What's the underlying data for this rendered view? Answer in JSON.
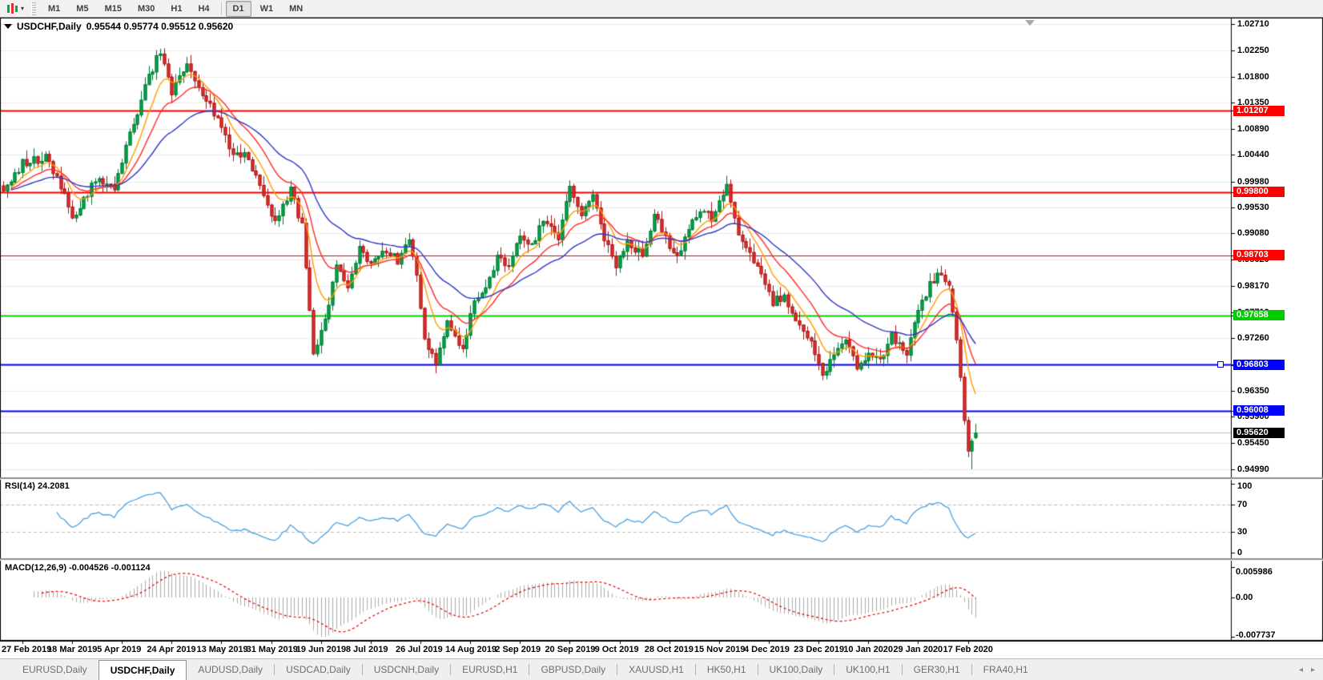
{
  "toolbar": {
    "timeframes": [
      "M1",
      "M5",
      "M15",
      "M30",
      "H1",
      "H4",
      "D1",
      "W1",
      "MN"
    ],
    "active_timeframe": "D1"
  },
  "icons": {
    "toolbar_chart_icon": "chart-periods",
    "toolbar_caret": "▾",
    "title_collapse": "▼",
    "scroll_marker": "▼",
    "tabs_left_arrow": "◂",
    "tabs_right_arrow": "▸"
  },
  "header": {
    "symbol": "USDCHF,Daily",
    "ohlc": "0.95544 0.95774 0.95512 0.95620"
  },
  "chart_data": {
    "type": "candlestick",
    "symbol": "USDCHF",
    "timeframe": "Daily",
    "title": "USDCHF,Daily",
    "ohlc_current": {
      "open": 0.95544,
      "high": 0.95774,
      "low": 0.95512,
      "close": 0.9562
    },
    "price_axis_ticks": [
      "1.02710",
      "1.02250",
      "1.01800",
      "1.01350",
      "1.00890",
      "1.00440",
      "0.99980",
      "0.99530",
      "0.99080",
      "0.98620",
      "0.98170",
      "0.97710",
      "0.97260",
      "0.96800",
      "0.96350",
      "0.95900",
      "0.95450",
      "0.94990"
    ],
    "price_axis_range": [
      0.9499,
      1.0271
    ],
    "x_axis_labels": [
      "27 Feb 2019",
      "18 Mar 2019",
      "5 Apr 2019",
      "24 Apr 2019",
      "13 May 2019",
      "31 May 2019",
      "19 Jun 2019",
      "8 Jul 2019",
      "26 Jul 2019",
      "14 Aug 2019",
      "2 Sep 2019",
      "20 Sep 2019",
      "9 Oct 2019",
      "28 Oct 2019",
      "15 Nov 2019",
      "4 Dec 2019",
      "23 Dec 2019",
      "10 Jan 2020",
      "29 Jan 2020",
      "17 Feb 2020"
    ],
    "levels": [
      {
        "price": 1.01207,
        "color": "#ff0000",
        "lw": 2,
        "badge": "1.01207",
        "badge_bg": "#ff0000"
      },
      {
        "price": 0.998,
        "color": "#ff0000",
        "lw": 2,
        "badge": "0.99800",
        "badge_bg": "#ff0000"
      },
      {
        "price": 0.98703,
        "color": "#e00000",
        "lw": 1,
        "badge": "0.98703",
        "badge_bg": "#ff0000"
      },
      {
        "price": 0.97658,
        "color": "#00d200",
        "lw": 2,
        "badge": "0.97658",
        "badge_bg": "#00cc00"
      },
      {
        "price": 0.96803,
        "color": "#0000ff",
        "lw": 2,
        "badge": "0.96803",
        "badge_bg": "#0000ff",
        "handle": true
      },
      {
        "price": 0.96008,
        "color": "#0000ff",
        "lw": 2,
        "badge": "0.96008",
        "badge_bg": "#0000ff"
      }
    ],
    "current_price": {
      "value": 0.9562,
      "badge": "0.95620",
      "line_color": "#bcbcbc",
      "badge_bg": "#000000"
    },
    "candles_count": 255,
    "price_path_anchors": [
      [
        0,
        0.9985
      ],
      [
        5,
        1.003
      ],
      [
        11,
        1.004
      ],
      [
        15,
        0.999
      ],
      [
        18,
        0.9935
      ],
      [
        24,
        1.0
      ],
      [
        29,
        0.9985
      ],
      [
        33,
        1.008
      ],
      [
        38,
        1.018
      ],
      [
        41,
        1.0226
      ],
      [
        44,
        1.015
      ],
      [
        48,
        1.0205
      ],
      [
        50,
        1.0175
      ],
      [
        54,
        1.013
      ],
      [
        60,
        1.0048
      ],
      [
        64,
        1.004
      ],
      [
        68,
        0.9975
      ],
      [
        71,
        0.993
      ],
      [
        75,
        0.9985
      ],
      [
        78,
        0.992
      ],
      [
        81,
        0.97
      ],
      [
        84,
        0.9755
      ],
      [
        87,
        0.985
      ],
      [
        90,
        0.981
      ],
      [
        93,
        0.988
      ],
      [
        96,
        0.9855
      ],
      [
        100,
        0.988
      ],
      [
        103,
        0.986
      ],
      [
        106,
        0.99
      ],
      [
        108,
        0.984
      ],
      [
        110,
        0.972
      ],
      [
        113,
        0.9685
      ],
      [
        116,
        0.975
      ],
      [
        120,
        0.971
      ],
      [
        123,
        0.979
      ],
      [
        126,
        0.981
      ],
      [
        129,
        0.987
      ],
      [
        132,
        0.985
      ],
      [
        135,
        0.9905
      ],
      [
        138,
        0.9885
      ],
      [
        141,
        0.9935
      ],
      [
        145,
        0.99
      ],
      [
        148,
        0.999
      ],
      [
        151,
        0.9945
      ],
      [
        154,
        0.997
      ],
      [
        157,
        0.99
      ],
      [
        160,
        0.9855
      ],
      [
        163,
        0.9895
      ],
      [
        167,
        0.987
      ],
      [
        170,
        0.994
      ],
      [
        173,
        0.99
      ],
      [
        176,
        0.9865
      ],
      [
        179,
        0.992
      ],
      [
        182,
        0.995
      ],
      [
        185,
        0.9935
      ],
      [
        189,
        0.999
      ],
      [
        192,
        0.99
      ],
      [
        195,
        0.987
      ],
      [
        198,
        0.984
      ],
      [
        201,
        0.979
      ],
      [
        204,
        0.98
      ],
      [
        207,
        0.976
      ],
      [
        211,
        0.972
      ],
      [
        214,
        0.966
      ],
      [
        217,
        0.97
      ],
      [
        220,
        0.972
      ],
      [
        223,
        0.968
      ],
      [
        226,
        0.97
      ],
      [
        229,
        0.969
      ],
      [
        232,
        0.973
      ],
      [
        236,
        0.97
      ],
      [
        239,
        0.977
      ],
      [
        242,
        0.982
      ],
      [
        245,
        0.9842
      ],
      [
        247,
        0.9815
      ],
      [
        248,
        0.9812
      ]
    ],
    "tail_candles": [
      {
        "i": 248,
        "o": 0.9812,
        "h": 0.9818,
        "l": 0.9765,
        "c": 0.9772
      },
      {
        "i": 249,
        "o": 0.9772,
        "h": 0.9779,
        "l": 0.9717,
        "c": 0.9724
      },
      {
        "i": 250,
        "o": 0.9724,
        "h": 0.9729,
        "l": 0.9651,
        "c": 0.9659
      },
      {
        "i": 251,
        "o": 0.9659,
        "h": 0.9666,
        "l": 0.9576,
        "c": 0.9584
      },
      {
        "i": 252,
        "o": 0.9584,
        "h": 0.959,
        "l": 0.952,
        "c": 0.9531
      },
      {
        "i": 253,
        "o": 0.9531,
        "h": 0.9552,
        "l": 0.9499,
        "c": 0.9548
      },
      {
        "i": 254,
        "o": 0.95544,
        "h": 0.95774,
        "l": 0.95512,
        "c": 0.9562
      }
    ],
    "moving_averages": [
      {
        "period": 8,
        "color": "#ff9c00"
      },
      {
        "period": 16,
        "color": "#ff2a2a"
      },
      {
        "period": 34,
        "color": "#3038c8"
      }
    ],
    "indicators": {
      "rsi": {
        "label": "RSI(14) 24.2081",
        "period": 14,
        "current_value": 24.2081,
        "levels": [
          70,
          30
        ],
        "scale_ticks": [
          "100",
          "70",
          "30",
          "0"
        ],
        "line_color": "#4aa1e0"
      },
      "macd": {
        "label": "MACD(12,26,9) -0.004526 -0.001124",
        "params": [
          12,
          26,
          9
        ],
        "current_macd": -0.004526,
        "current_signal": -0.001124,
        "scale_ticks": [
          "0.005986",
          "0.00",
          "-0.007737"
        ],
        "scale_values": [
          0.005986,
          0.0,
          -0.007737
        ],
        "hist_color": "#ababab",
        "signal_color": "#e00000"
      }
    },
    "colors": {
      "bull": "#00a94f",
      "bull_border": "#00742f",
      "bear": "#e03232",
      "bear_border": "#a81212",
      "grid": "#ececec",
      "axis_line": "#000000"
    }
  },
  "tabs": {
    "items": [
      {
        "label": "EURUSD,Daily",
        "active": false
      },
      {
        "label": "USDCHF,Daily",
        "active": true
      },
      {
        "label": "AUDUSD,Daily",
        "active": false
      },
      {
        "label": "USDCAD,Daily",
        "active": false
      },
      {
        "label": "USDCNH,Daily",
        "active": false
      },
      {
        "label": "EURUSD,H1",
        "active": false
      },
      {
        "label": "GBPUSD,Daily",
        "active": false
      },
      {
        "label": "XAUUSD,H1",
        "active": false
      },
      {
        "label": "HK50,H1",
        "active": false
      },
      {
        "label": "UK100,Daily",
        "active": false
      },
      {
        "label": "UK100,H1",
        "active": false
      },
      {
        "label": "GER30,H1",
        "active": false
      },
      {
        "label": "FRA40,H1",
        "active": false
      }
    ]
  }
}
